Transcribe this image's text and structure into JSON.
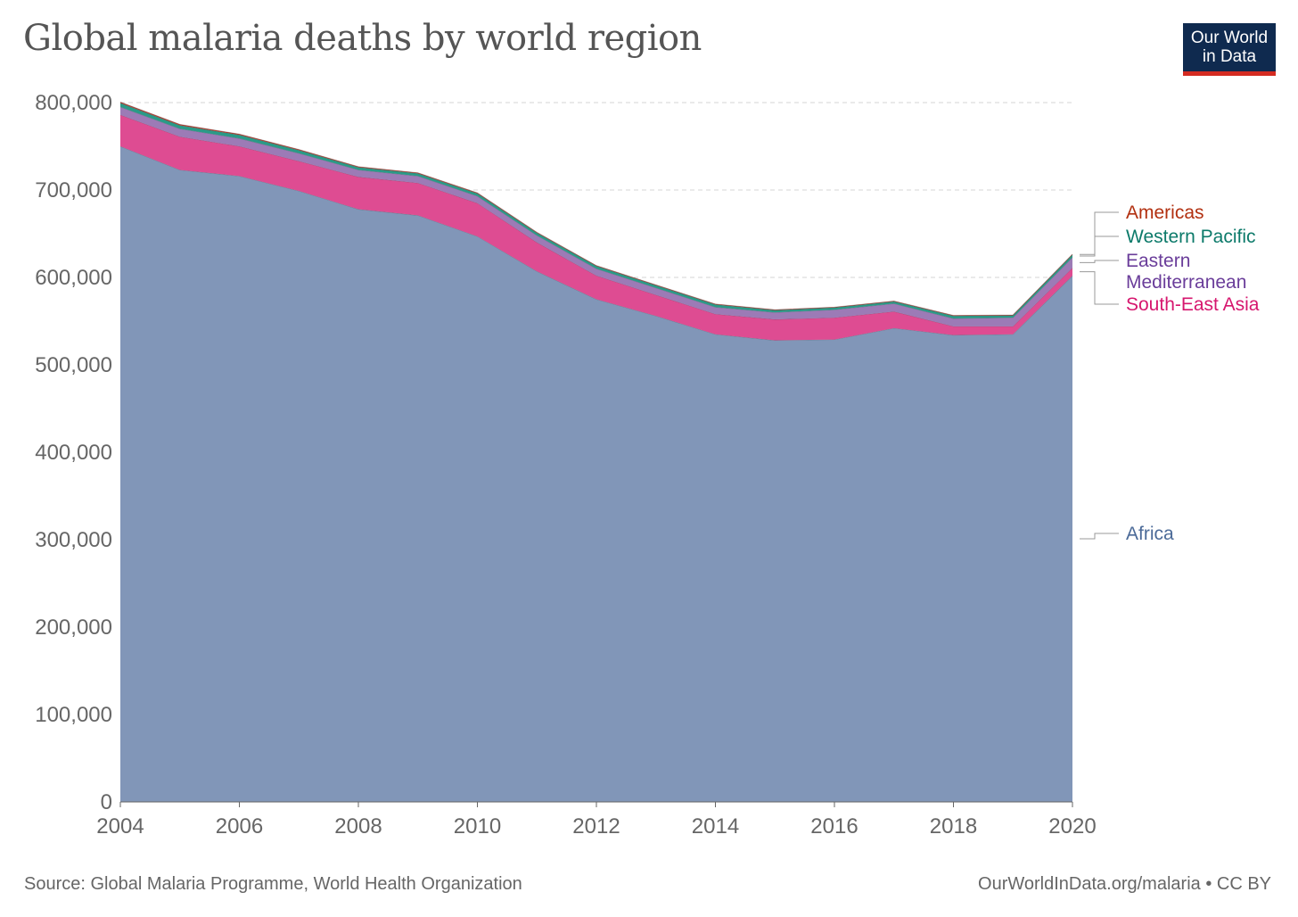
{
  "title": "Global malaria deaths by world region",
  "logo": {
    "line1": "Our World",
    "line2": "in Data"
  },
  "footer": {
    "source": "Source: Global Malaria Programme, World Health Organization",
    "credit": "OurWorldInData.org/malaria • CC BY"
  },
  "colors": {
    "africa": "#8196b8",
    "south_east_asia": "#de4c92",
    "eastern_mediterranean": "#9c7bb6",
    "western_pacific": "#2a9a87",
    "americas": "#c0382b",
    "africa_label": "#4b6a98",
    "south_east_asia_label": "#d6166e",
    "eastern_mediterranean_label": "#6a3d9a",
    "western_pacific_label": "#0c7a6a",
    "americas_label": "#b23010",
    "logo_bg": "#0f2a4f",
    "logo_bar": "#d42b21"
  },
  "chart_data": {
    "type": "area",
    "stacked": true,
    "title": "Global malaria deaths by world region",
    "x": [
      2004,
      2005,
      2006,
      2007,
      2008,
      2009,
      2010,
      2011,
      2012,
      2013,
      2014,
      2015,
      2016,
      2017,
      2018,
      2019,
      2020
    ],
    "xticks": [
      "2004",
      "2006",
      "2008",
      "2010",
      "2012",
      "2014",
      "2016",
      "2018",
      "2020"
    ],
    "yticks": [
      "0",
      "100,000",
      "200,000",
      "300,000",
      "400,000",
      "500,000",
      "600,000",
      "700,000",
      "800,000"
    ],
    "ylim": [
      0,
      800000
    ],
    "xlim": [
      2004,
      2020
    ],
    "grid": true,
    "legend": "right (inline labels)",
    "series": [
      {
        "name": "Africa",
        "key": "africa",
        "values": [
          750000,
          723000,
          716000,
          699000,
          678000,
          671000,
          647000,
          607000,
          575000,
          556000,
          535000,
          528000,
          529000,
          542000,
          534000,
          535000,
          602000
        ]
      },
      {
        "name": "South-East Asia",
        "key": "south_east_asia",
        "values": [
          36000,
          38000,
          34000,
          34000,
          37000,
          37000,
          38000,
          33000,
          27000,
          24000,
          23000,
          24000,
          25000,
          19000,
          10000,
          9000,
          9000
        ]
      },
      {
        "name": "Eastern Mediterranean",
        "key": "eastern_mediterranean",
        "values": [
          9000,
          9000,
          9000,
          9000,
          8000,
          8000,
          8000,
          8000,
          8000,
          8000,
          8000,
          8000,
          9000,
          9000,
          9000,
          10000,
          12000
        ]
      },
      {
        "name": "Western Pacific",
        "key": "western_pacific",
        "values": [
          4500,
          4000,
          4000,
          3500,
          3000,
          3000,
          3000,
          3000,
          3000,
          3000,
          3000,
          2500,
          2500,
          2500,
          3000,
          2500,
          3000
        ]
      },
      {
        "name": "Americas",
        "key": "americas",
        "values": [
          1200,
          1100,
          1000,
          900,
          800,
          800,
          800,
          700,
          600,
          600,
          600,
          600,
          600,
          600,
          600,
          600,
          600
        ]
      }
    ],
    "labels": [
      {
        "key": "americas",
        "lines": [
          "Americas"
        ]
      },
      {
        "key": "western_pacific",
        "lines": [
          "Western Pacific"
        ]
      },
      {
        "key": "eastern_mediterranean",
        "lines": [
          "Eastern",
          "Mediterranean"
        ]
      },
      {
        "key": "south_east_asia",
        "lines": [
          "South-East Asia"
        ]
      },
      {
        "key": "africa",
        "lines": [
          "Africa"
        ]
      }
    ]
  }
}
